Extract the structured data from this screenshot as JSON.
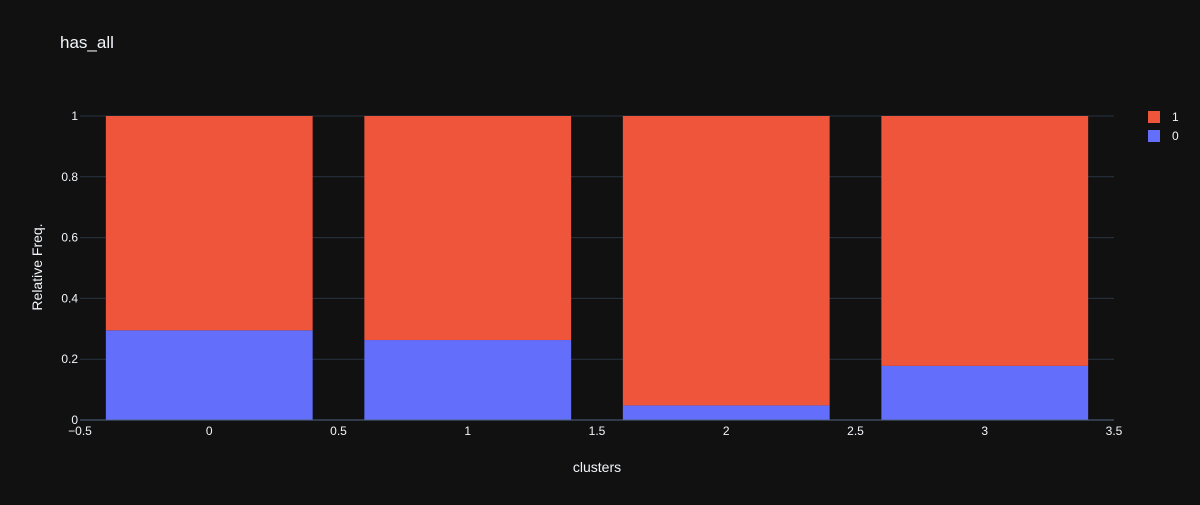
{
  "chart_data": {
    "type": "bar",
    "barmode": "stack",
    "title": "has_all",
    "xlabel": "clusters",
    "ylabel": "Relative Freq.",
    "categories": [
      0,
      1,
      2,
      3
    ],
    "xlim": [
      -0.5,
      3.5
    ],
    "ylim": [
      0,
      1
    ],
    "x_ticks": [
      "−0.5",
      "0",
      "0.5",
      "1",
      "1.5",
      "2",
      "2.5",
      "3",
      "3.5"
    ],
    "x_tick_values": [
      -0.5,
      0,
      0.5,
      1,
      1.5,
      2,
      2.5,
      3,
      3.5
    ],
    "y_ticks": [
      "0",
      "0.2",
      "0.4",
      "0.6",
      "0.8",
      "1"
    ],
    "y_tick_values": [
      0,
      0.2,
      0.4,
      0.6,
      0.8,
      1
    ],
    "grid": true,
    "legend_position": "top-right",
    "series": [
      {
        "name": "0",
        "color": "#636efa",
        "values": [
          0.295,
          0.263,
          0.048,
          0.178
        ]
      },
      {
        "name": "1",
        "color": "#ef553b",
        "values": [
          0.705,
          0.737,
          0.952,
          0.822
        ]
      }
    ],
    "legend_order": [
      "1",
      "0"
    ]
  }
}
